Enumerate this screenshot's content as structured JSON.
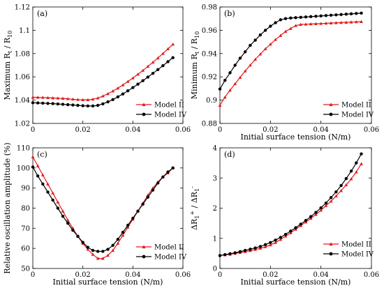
{
  "chart_data": [
    {
      "type": "line",
      "panel": "(a)",
      "xlabel": "",
      "ylabel": "Maximum R_t / R_10",
      "xlim": [
        0,
        0.06
      ],
      "ylim": [
        1.02,
        1.12
      ],
      "xticks": [
        "0",
        "0.02",
        "0.04",
        "0.06"
      ],
      "xtick_values": [
        0,
        0.02,
        0.04,
        0.06
      ],
      "yticks": [
        "1.02",
        "1.04",
        "1.06",
        "1.08",
        "1.1",
        "1.12"
      ],
      "ytick_values": [
        1.02,
        1.04,
        1.06,
        1.08,
        1.1,
        1.12
      ],
      "grid": false,
      "legend": "lower-right",
      "series": [
        {
          "name": "Model II",
          "color": "#e31a1c",
          "marker": "triangle",
          "x": [
            0,
            0.002,
            0.004,
            0.006,
            0.008,
            0.01,
            0.012,
            0.014,
            0.016,
            0.018,
            0.02,
            0.022,
            0.024,
            0.026,
            0.028,
            0.03,
            0.032,
            0.034,
            0.036,
            0.038,
            0.04,
            0.042,
            0.044,
            0.046,
            0.048,
            0.05,
            0.052,
            0.054,
            0.056
          ],
          "y": [
            1.0425,
            1.0424,
            1.0423,
            1.0421,
            1.0419,
            1.0417,
            1.0415,
            1.0412,
            1.0408,
            1.0405,
            1.0403,
            1.0403,
            1.0408,
            1.0418,
            1.0435,
            1.0455,
            1.0478,
            1.0503,
            1.053,
            1.056,
            1.059,
            1.0622,
            1.0655,
            1.069,
            1.0725,
            1.0762,
            1.08,
            1.084,
            1.088
          ]
        },
        {
          "name": "Model IV",
          "color": "#000000",
          "marker": "circle",
          "x": [
            0,
            0.002,
            0.004,
            0.006,
            0.008,
            0.01,
            0.012,
            0.014,
            0.016,
            0.018,
            0.02,
            0.022,
            0.024,
            0.026,
            0.028,
            0.03,
            0.032,
            0.034,
            0.036,
            0.038,
            0.04,
            0.042,
            0.044,
            0.046,
            0.048,
            0.05,
            0.052,
            0.054,
            0.056
          ],
          "y": [
            1.0378,
            1.0376,
            1.0374,
            1.0372,
            1.037,
            1.0367,
            1.0364,
            1.0361,
            1.0358,
            1.0355,
            1.0352,
            1.035,
            1.035,
            1.0355,
            1.0368,
            1.0385,
            1.0405,
            1.0428,
            1.0453,
            1.048,
            1.0508,
            1.0537,
            1.0567,
            1.0598,
            1.063,
            1.0662,
            1.0696,
            1.073,
            1.0765
          ]
        }
      ]
    },
    {
      "type": "line",
      "panel": "(b)",
      "xlabel": "Initial surface tension (N/m)",
      "ylabel": "Minimum R_t / R_10",
      "xlim": [
        0,
        0.06
      ],
      "ylim": [
        0.88,
        0.98
      ],
      "xticks": [
        "0",
        "0.02",
        "0.04",
        "0.06"
      ],
      "xtick_values": [
        0,
        0.02,
        0.04,
        0.06
      ],
      "yticks": [
        "0.88",
        "0.9",
        "0.92",
        "0.94",
        "0.96",
        "0.98"
      ],
      "ytick_values": [
        0.88,
        0.9,
        0.92,
        0.94,
        0.96,
        0.98
      ],
      "grid": false,
      "legend": "lower-right",
      "series": [
        {
          "name": "Model II",
          "color": "#e31a1c",
          "marker": "triangle",
          "x": [
            0,
            0.002,
            0.004,
            0.006,
            0.008,
            0.01,
            0.012,
            0.014,
            0.016,
            0.018,
            0.02,
            0.022,
            0.024,
            0.026,
            0.028,
            0.03,
            0.032,
            0.034,
            0.036,
            0.038,
            0.04,
            0.042,
            0.044,
            0.046,
            0.048,
            0.05,
            0.052,
            0.054,
            0.056
          ],
          "y": [
            0.8955,
            0.9025,
            0.9085,
            0.914,
            0.9195,
            0.925,
            0.93,
            0.935,
            0.9395,
            0.944,
            0.948,
            0.952,
            0.9555,
            0.959,
            0.9615,
            0.964,
            0.965,
            0.9652,
            0.9654,
            0.9656,
            0.9658,
            0.966,
            0.9662,
            0.9664,
            0.9666,
            0.9668,
            0.967,
            0.9672,
            0.9674
          ]
        },
        {
          "name": "Model IV",
          "color": "#000000",
          "marker": "circle",
          "x": [
            0,
            0.002,
            0.004,
            0.006,
            0.008,
            0.01,
            0.012,
            0.014,
            0.016,
            0.018,
            0.02,
            0.022,
            0.024,
            0.026,
            0.028,
            0.03,
            0.032,
            0.034,
            0.036,
            0.038,
            0.04,
            0.042,
            0.044,
            0.046,
            0.048,
            0.05,
            0.052,
            0.054,
            0.056
          ],
          "y": [
            0.9095,
            0.917,
            0.9235,
            0.93,
            0.936,
            0.9415,
            0.947,
            0.9515,
            0.956,
            0.96,
            0.9635,
            0.9665,
            0.969,
            0.97,
            0.9705,
            0.9708,
            0.9711,
            0.9714,
            0.9717,
            0.972,
            0.9723,
            0.9726,
            0.9729,
            0.9732,
            0.9735,
            0.9738,
            0.9741,
            0.9744,
            0.9747
          ]
        }
      ]
    },
    {
      "type": "line",
      "panel": "(c)",
      "xlabel": "Initial surface tension (N/m)",
      "ylabel": "Relative oscillation amplitude (%)",
      "xlim": [
        0,
        0.06
      ],
      "ylim": [
        50,
        110
      ],
      "xticks": [
        "0",
        "0.02",
        "0.04",
        "0.06"
      ],
      "xtick_values": [
        0,
        0.02,
        0.04,
        0.06
      ],
      "yticks": [
        "50",
        "60",
        "70",
        "80",
        "90",
        "100",
        "110"
      ],
      "ytick_values": [
        50,
        60,
        70,
        80,
        90,
        100,
        110
      ],
      "grid": false,
      "legend": "lower-right",
      "series": [
        {
          "name": "Model II",
          "color": "#e31a1c",
          "marker": "triangle",
          "x": [
            0,
            0.002,
            0.004,
            0.006,
            0.008,
            0.01,
            0.012,
            0.014,
            0.016,
            0.018,
            0.02,
            0.022,
            0.024,
            0.026,
            0.028,
            0.03,
            0.032,
            0.034,
            0.036,
            0.038,
            0.04,
            0.042,
            0.044,
            0.046,
            0.048,
            0.05,
            0.052,
            0.054,
            0.056
          ],
          "y": [
            105.5,
            101.0,
            96.5,
            92.0,
            87.5,
            83.0,
            78.5,
            74.0,
            70.0,
            66.0,
            62.5,
            59.5,
            57.0,
            55.0,
            55.0,
            56.5,
            59.0,
            62.5,
            66.5,
            70.5,
            74.5,
            78.5,
            82.5,
            86.5,
            90.0,
            93.0,
            95.5,
            97.5,
            100.0
          ]
        },
        {
          "name": "Model IV",
          "color": "#000000",
          "marker": "circle",
          "x": [
            0,
            0.002,
            0.004,
            0.006,
            0.008,
            0.01,
            0.012,
            0.014,
            0.016,
            0.018,
            0.02,
            0.022,
            0.024,
            0.026,
            0.028,
            0.03,
            0.032,
            0.034,
            0.036,
            0.038,
            0.04,
            0.042,
            0.044,
            0.046,
            0.048,
            0.05,
            0.052,
            0.054,
            0.056
          ],
          "y": [
            100.5,
            96.0,
            92.0,
            88.0,
            84.0,
            80.0,
            76.0,
            72.5,
            69.0,
            66.0,
            63.0,
            60.5,
            59.0,
            58.5,
            58.5,
            59.5,
            61.5,
            64.5,
            68.0,
            71.5,
            75.0,
            78.5,
            82.0,
            85.5,
            89.0,
            92.5,
            95.5,
            98.0,
            100.0
          ]
        }
      ]
    },
    {
      "type": "line",
      "panel": "(d)",
      "xlabel": "Initial surface tension (N/m)",
      "ylabel": "ΔR_1^+ / ΔR_1^-",
      "xlim": [
        0,
        0.06
      ],
      "ylim": [
        0,
        4
      ],
      "xticks": [
        "0",
        "0.02",
        "0.04",
        "0.06"
      ],
      "xtick_values": [
        0,
        0.02,
        0.04,
        0.06
      ],
      "yticks": [
        "0",
        "1",
        "2",
        "3",
        "4"
      ],
      "ytick_values": [
        0,
        1,
        2,
        3,
        4
      ],
      "grid": false,
      "legend": "lower-right",
      "series": [
        {
          "name": "Model II",
          "color": "#e31a1c",
          "marker": "triangle",
          "x": [
            0,
            0.002,
            0.004,
            0.006,
            0.008,
            0.01,
            0.012,
            0.014,
            0.016,
            0.018,
            0.02,
            0.022,
            0.024,
            0.026,
            0.028,
            0.03,
            0.032,
            0.034,
            0.036,
            0.038,
            0.04,
            0.042,
            0.044,
            0.046,
            0.048,
            0.05,
            0.052,
            0.054,
            0.056
          ],
          "y": [
            0.43,
            0.45,
            0.47,
            0.5,
            0.53,
            0.56,
            0.59,
            0.63,
            0.67,
            0.72,
            0.78,
            0.86,
            0.96,
            1.07,
            1.18,
            1.3,
            1.42,
            1.54,
            1.66,
            1.79,
            1.93,
            2.08,
            2.23,
            2.4,
            2.58,
            2.77,
            2.97,
            3.2,
            3.47
          ]
        },
        {
          "name": "Model IV",
          "color": "#000000",
          "marker": "circle",
          "x": [
            0,
            0.002,
            0.004,
            0.006,
            0.008,
            0.01,
            0.012,
            0.014,
            0.016,
            0.018,
            0.02,
            0.022,
            0.024,
            0.026,
            0.028,
            0.03,
            0.032,
            0.034,
            0.036,
            0.038,
            0.04,
            0.042,
            0.044,
            0.046,
            0.048,
            0.05,
            0.052,
            0.054,
            0.056
          ],
          "y": [
            0.43,
            0.46,
            0.49,
            0.52,
            0.56,
            0.6,
            0.64,
            0.68,
            0.73,
            0.79,
            0.86,
            0.94,
            1.03,
            1.13,
            1.24,
            1.35,
            1.47,
            1.59,
            1.72,
            1.86,
            2.01,
            2.17,
            2.35,
            2.54,
            2.75,
            2.98,
            3.23,
            3.5,
            3.8
          ]
        }
      ]
    }
  ]
}
